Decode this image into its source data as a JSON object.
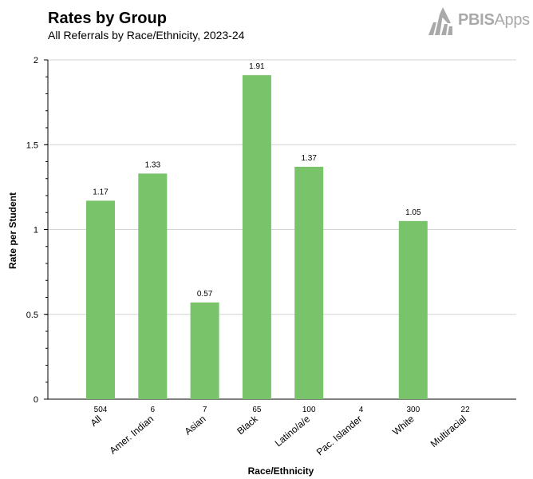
{
  "header": {
    "title": "Rates by Group",
    "subtitle": "All Referrals by Race/Ethnicity, 2023-24"
  },
  "logo": {
    "bold": "PBIS",
    "light": "Apps",
    "color": "#a9a9a9"
  },
  "chart_data": {
    "type": "bar",
    "xlabel": "Race/Ethnicity",
    "ylabel": "Rate per Student",
    "ylim": [
      0,
      2
    ],
    "yticks": [
      "0",
      "0.5",
      "1",
      "1.5",
      "2"
    ],
    "grid": true,
    "bar_color": "#79c46b",
    "categories": [
      "All",
      "Amer. Indian",
      "Asian",
      "Black",
      "Latino/a/e",
      "Pac. Islander",
      "White",
      "Multiracial"
    ],
    "counts": [
      "504",
      "6",
      "7",
      "65",
      "100",
      "4",
      "300",
      "22"
    ],
    "values": [
      1.17,
      1.33,
      0.57,
      1.91,
      1.37,
      null,
      1.05,
      null
    ],
    "value_labels": [
      "1.17",
      "1.33",
      "0.57",
      "1.91",
      "1.37",
      "",
      "1.05",
      ""
    ]
  }
}
